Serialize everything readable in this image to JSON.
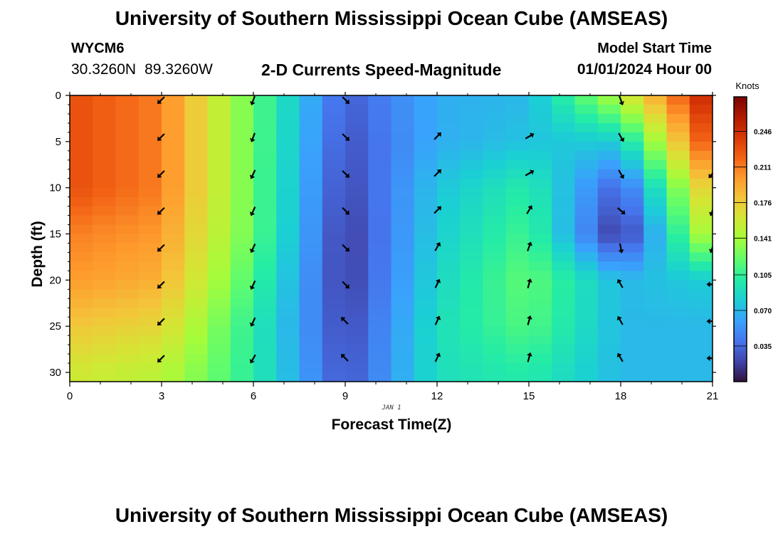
{
  "header": {
    "title": "University of Southern Mississippi Ocean Cube (AMSEAS)",
    "station_id": "WYCM6",
    "latitude": "30.3260N",
    "longitude": "89.3260W",
    "subtitle": "2-D Currents Speed-Magnitude",
    "model_start_label": "Model Start Time",
    "model_start_value": "01/01/2024 Hour 00"
  },
  "footer": {
    "title": "University of Southern Mississippi Ocean Cube (AMSEAS)"
  },
  "chart_data": {
    "type": "heatmap",
    "title": "2-D Currents Speed-Magnitude",
    "xlabel": "Forecast Time(Z)",
    "ylabel": "Depth (ft)",
    "date_annotation": "JAN 1",
    "xlim": [
      0,
      21
    ],
    "ylim": [
      31,
      0
    ],
    "x_ticks": [
      0,
      3,
      6,
      9,
      12,
      15,
      18,
      21
    ],
    "y_ticks": [
      0,
      5,
      10,
      15,
      20,
      25,
      30
    ],
    "colorbar": {
      "label": "Knots",
      "range": [
        0,
        0.28
      ],
      "ticks": [
        "0.246",
        "0.211",
        "0.176",
        "0.141",
        "0.105",
        "0.070",
        "0.035"
      ]
    },
    "color_scale": [
      "#30123b",
      "#4145ab",
      "#4675ed",
      "#39a2fc",
      "#1bcfd4",
      "#24eca6",
      "#61fc6c",
      "#a4fc3b",
      "#d1e834",
      "#f3c63a",
      "#fe9b2d",
      "#f36315",
      "#d93806",
      "#b11901",
      "#7a0402"
    ],
    "speed_profiles_knots": {
      "depths_ft": [
        0,
        5,
        10,
        15,
        20,
        25,
        30
      ],
      "hour_0": [
        0.23,
        0.23,
        0.23,
        0.21,
        0.2,
        0.18,
        0.16
      ],
      "hour_3": [
        0.21,
        0.21,
        0.21,
        0.2,
        0.19,
        0.17,
        0.15
      ],
      "hour_6": [
        0.12,
        0.12,
        0.12,
        0.12,
        0.11,
        0.1,
        0.1
      ],
      "hour_9": [
        0.03,
        0.025,
        0.02,
        0.015,
        0.015,
        0.02,
        0.025
      ],
      "hour_12": [
        0.065,
        0.065,
        0.075,
        0.08,
        0.085,
        0.09,
        0.09
      ],
      "hour_15": [
        0.07,
        0.075,
        0.1,
        0.11,
        0.12,
        0.115,
        0.1
      ],
      "hour_18": [
        0.15,
        0.08,
        0.03,
        0.01,
        0.07,
        0.07,
        0.07
      ],
      "hour_21": [
        0.26,
        0.24,
        0.19,
        0.16,
        0.08,
        0.07,
        0.07
      ]
    },
    "vectors": {
      "hours": [
        3,
        6,
        9,
        12,
        15,
        18,
        21
      ],
      "depths_ft": [
        0,
        4,
        8,
        12,
        16,
        20,
        24,
        28
      ],
      "directions_deg": [
        [
          225,
          225,
          225,
          225,
          225,
          225,
          225,
          225
        ],
        [
          200,
          200,
          205,
          205,
          205,
          205,
          205,
          210
        ],
        [
          135,
          135,
          135,
          135,
          135,
          135,
          315,
          315
        ],
        [
          null,
          45,
          45,
          45,
          30,
          25,
          25,
          25
        ],
        [
          null,
          60,
          60,
          30,
          20,
          15,
          15,
          15
        ],
        [
          160,
          150,
          150,
          130,
          170,
          330,
          330,
          330
        ],
        [
          null,
          null,
          220,
          200,
          200,
          270,
          270,
          270
        ]
      ]
    }
  }
}
